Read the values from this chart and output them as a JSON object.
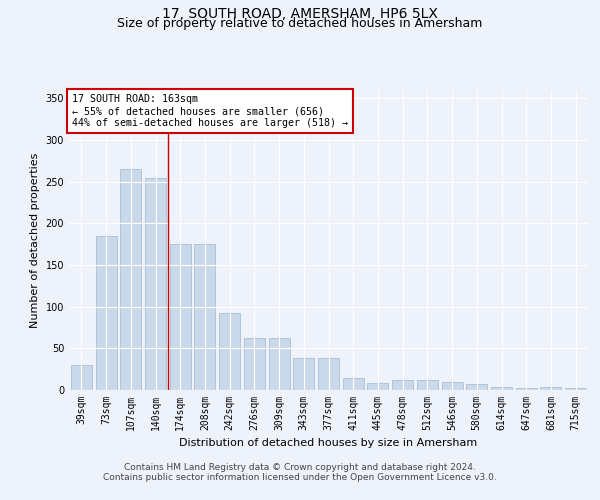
{
  "title": "17, SOUTH ROAD, AMERSHAM, HP6 5LX",
  "subtitle": "Size of property relative to detached houses in Amersham",
  "xlabel": "Distribution of detached houses by size in Amersham",
  "ylabel": "Number of detached properties",
  "categories": [
    "39sqm",
    "73sqm",
    "107sqm",
    "140sqm",
    "174sqm",
    "208sqm",
    "242sqm",
    "276sqm",
    "309sqm",
    "343sqm",
    "377sqm",
    "411sqm",
    "445sqm",
    "478sqm",
    "512sqm",
    "546sqm",
    "580sqm",
    "614sqm",
    "647sqm",
    "681sqm",
    "715sqm"
  ],
  "values": [
    30,
    185,
    265,
    255,
    175,
    175,
    93,
    63,
    63,
    38,
    38,
    14,
    8,
    12,
    12,
    10,
    7,
    4,
    3,
    4,
    3
  ],
  "bar_color": "#c9d9ea",
  "bar_edge_color": "#a0b8d0",
  "red_line_x": 3.5,
  "ylim": [
    0,
    360
  ],
  "yticks": [
    0,
    50,
    100,
    150,
    200,
    250,
    300,
    350
  ],
  "annotation_title": "17 SOUTH ROAD: 163sqm",
  "annotation_line1": "← 55% of detached houses are smaller (656)",
  "annotation_line2": "44% of semi-detached houses are larger (518) →",
  "annotation_box_color": "#ffffff",
  "annotation_box_edge": "#cc0000",
  "footer_line1": "Contains HM Land Registry data © Crown copyright and database right 2024.",
  "footer_line2": "Contains public sector information licensed under the Open Government Licence v3.0.",
  "background_color": "#eef2fa",
  "plot_bg_color": "#eef2fa",
  "grid_color": "#ffffff",
  "title_fontsize": 10,
  "subtitle_fontsize": 9,
  "axis_label_fontsize": 8,
  "tick_fontsize": 7,
  "footer_fontsize": 6.5
}
